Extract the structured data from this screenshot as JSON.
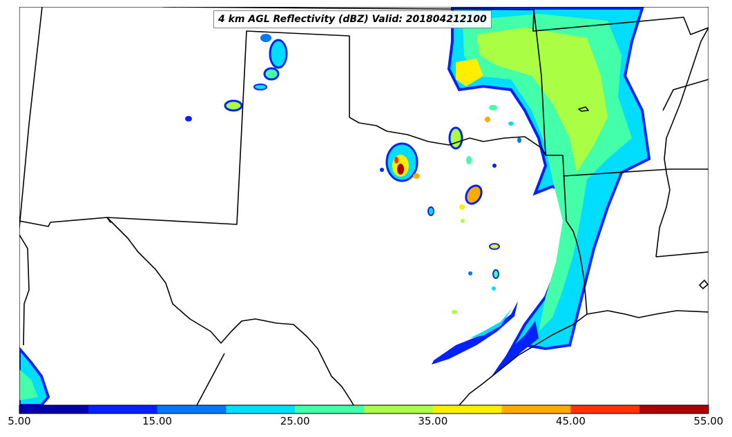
{
  "map": {
    "title": "4 km AGL Reflectivity (dBZ) Valid: 201804212100",
    "variable": "reflectivity",
    "colors": {
      "background": "#ffffff",
      "borders": "#000000"
    }
  },
  "colorbar": {
    "range": [
      5,
      55
    ],
    "interval": 5,
    "tick_labels": [
      "5.00",
      "15.00",
      "25.00",
      "35.00",
      "45.00",
      "55.00"
    ],
    "colors": [
      "#0000b0",
      "#0022ff",
      "#0077ff",
      "#00ddff",
      "#44ffaa",
      "#aaff44",
      "#ffee00",
      "#ffaa00",
      "#ff3300",
      "#b00000"
    ]
  }
}
